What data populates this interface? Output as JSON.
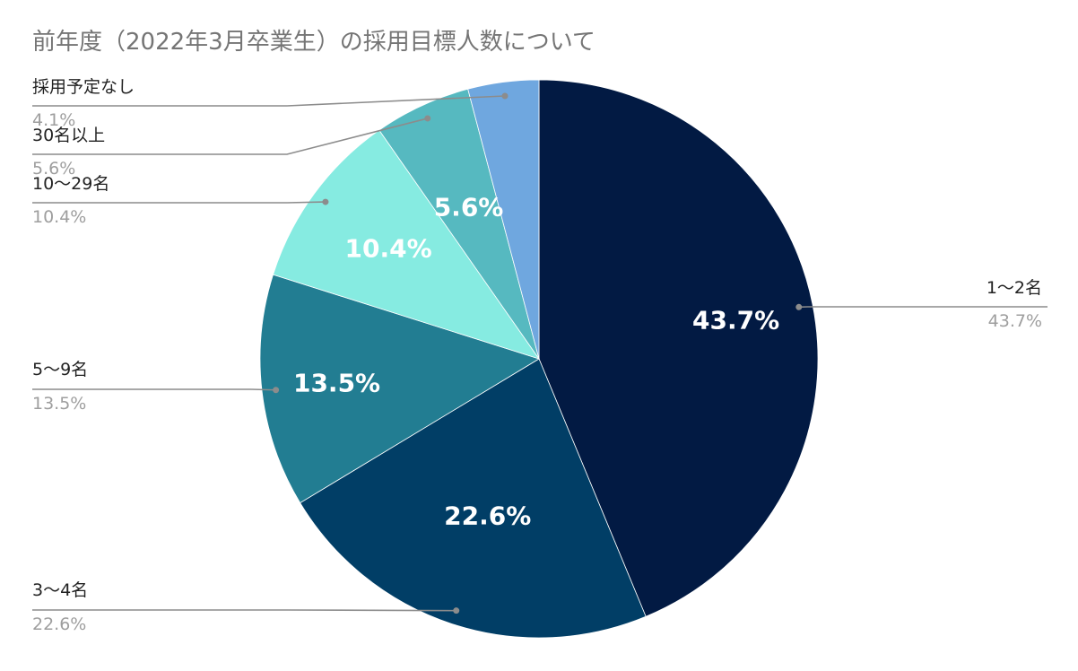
{
  "chart_data": {
    "type": "pie",
    "title": "前年度（2022年3月卒業生）の採用目標人数について",
    "slices": [
      {
        "label": "1〜2名",
        "value": 43.7,
        "display": "43.7%",
        "color": "#021a43"
      },
      {
        "label": "3〜4名",
        "value": 22.6,
        "display": "22.6%",
        "color": "#013e66"
      },
      {
        "label": "5〜9名",
        "value": 13.5,
        "display": "13.5%",
        "color": "#227d92"
      },
      {
        "label": "10〜29名",
        "value": 10.4,
        "display": "10.4%",
        "color": "#86ebe1"
      },
      {
        "label": "30名以上",
        "value": 5.6,
        "display": "5.6%",
        "color": "#56b9c0"
      },
      {
        "label": "採用予定なし",
        "value": 4.1,
        "display": "4.1%",
        "color": "#6fa7df"
      }
    ],
    "start_angle": "12 o'clock",
    "direction": "clockwise",
    "legend": "none (leader-line callouts)"
  }
}
